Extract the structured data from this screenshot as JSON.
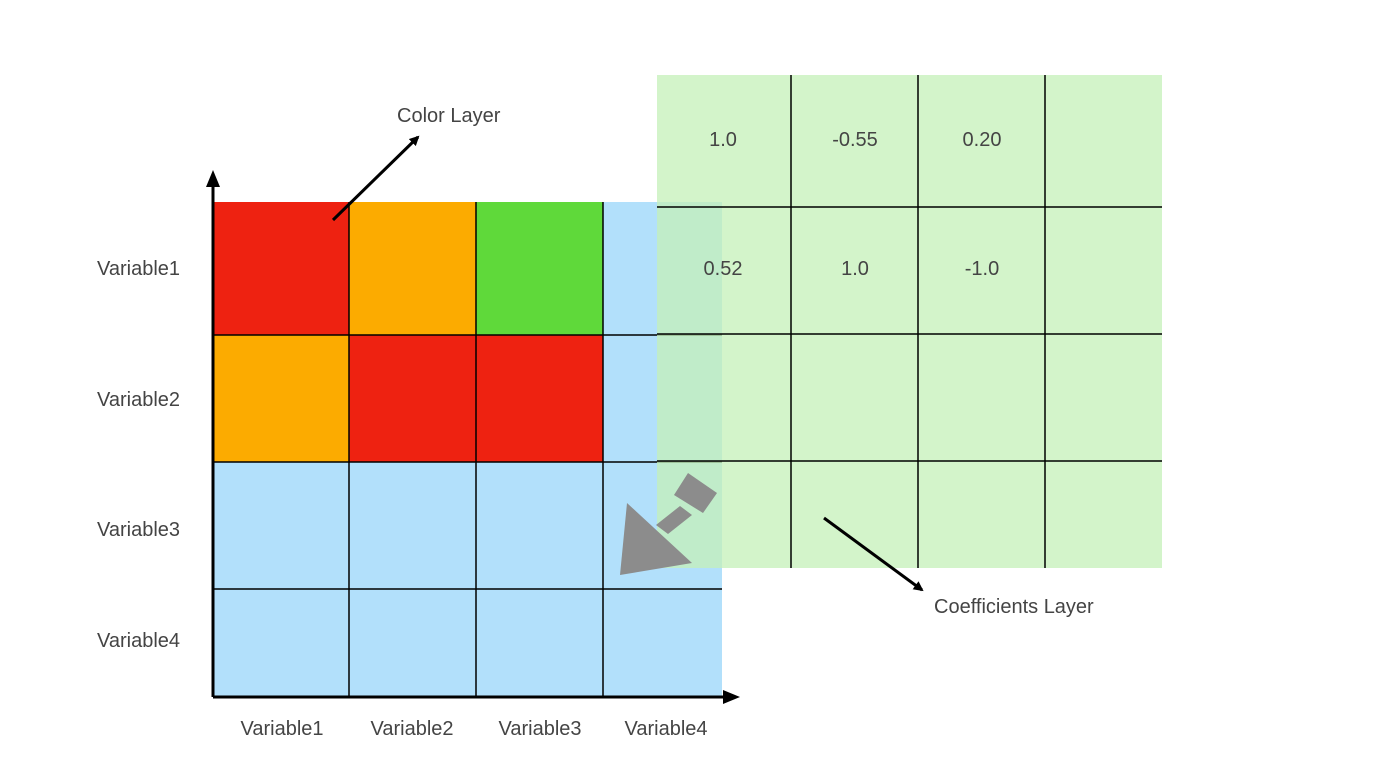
{
  "annotations": {
    "color_layer": "Color Layer",
    "coefficients_layer": "Coefficients Layer"
  },
  "row_labels": [
    "Variable1",
    "Variable2",
    "Variable3",
    "Variable4"
  ],
  "col_labels": [
    "Variable1",
    "Variable2",
    "Variable3",
    "Variable4"
  ],
  "color_layer": {
    "cells": [
      [
        "#ee2211",
        "#fcab00",
        "#5fd93a",
        "#b2e0fb"
      ],
      [
        "#fcab00",
        "#ee2211",
        "#ee2211",
        "#b2e0fb"
      ],
      [
        "#b2e0fb",
        "#b2e0fb",
        "#b2e0fb",
        "#b2e0fb"
      ],
      [
        "#b2e0fb",
        "#b2e0fb",
        "#b2e0fb",
        "#b2e0fb"
      ]
    ],
    "default_color": "#b2e0fb"
  },
  "coefficients_layer": {
    "values": [
      [
        "1.0",
        "-0.55",
        "0.20",
        ""
      ],
      [
        "0.52",
        "1.0",
        "-1.0",
        ""
      ],
      [
        "",
        "",
        "",
        ""
      ],
      [
        "",
        "",
        "",
        ""
      ]
    ],
    "fill_color": "#c4f0b8",
    "fill_opacity": 0.75
  },
  "colors": {
    "axis": "#000000",
    "grid": "#000000",
    "merge_arrow": "#8c8c8c",
    "text": "#444444"
  }
}
